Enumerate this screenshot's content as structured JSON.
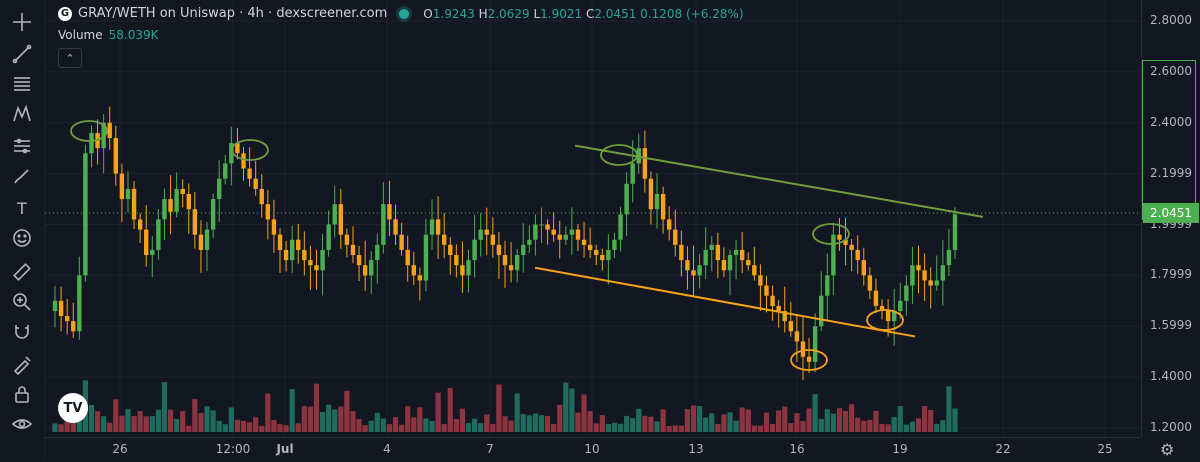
{
  "legend": {
    "logo_letter": "G",
    "pair_title": "GRAY/WETH on Uniswap · 4h · dexscreener.com",
    "o_label": "O",
    "o_value": "1.9243",
    "h_label": "H",
    "h_value": "2.0629",
    "l_label": "L",
    "l_value": "1.9021",
    "c_label": "C",
    "c_value": "2.0451",
    "change": "0.1208 (+6.28%)",
    "volume_label": "Volume",
    "volume_value": "58.039K",
    "collapse_glyph": "⌃"
  },
  "toolbar": {
    "items": [
      "crosshair-icon",
      "trend-line-icon",
      "fib-icon",
      "pattern-icon",
      "projection-icon",
      "brush-icon",
      "text-icon",
      "emoji-icon",
      "ruler-icon",
      "zoom-icon",
      "magnet-icon",
      "lock-drawings-icon",
      "lock-icon",
      "eye-icon"
    ],
    "text_tool_glyph": "T"
  },
  "colors": {
    "background": "#131722",
    "bull_candle": "#4caf50",
    "bear_candle": "#f7a21b",
    "bull_volume": "#1f6b5e",
    "bear_volume": "#8c3541",
    "trendline_upper": "#6fa03a",
    "trendline_lower": "#f7a21b",
    "last_price": "#4caf50"
  },
  "price_axis": {
    "labels": [
      "2.8000",
      "2.6000",
      "2.4000",
      "2.1999",
      "1.9999",
      "1.7999",
      "1.5999",
      "1.4000",
      "1.2000"
    ],
    "last_price": "2.0451"
  },
  "time_axis": {
    "labels": [
      "26",
      "12:00",
      "Jul",
      "4",
      "7",
      "10",
      "13",
      "16",
      "19",
      "22",
      "25"
    ]
  },
  "tv_logo_glyph": "TV",
  "settings_glyph": "⚙",
  "chart_data": {
    "type": "candlestick",
    "title": "GRAY/WETH on Uniswap · 4h · dexscreener.com",
    "interval": "4h",
    "ylim": [
      1.2,
      2.8
    ],
    "last": {
      "open": 1.9243,
      "high": 2.0629,
      "low": 1.9021,
      "close": 2.0451,
      "change": 0.1208,
      "change_pct": 6.28
    },
    "volume_last": "58.039K",
    "closes": [
      1.7,
      1.64,
      1.62,
      1.58,
      1.8,
      2.28,
      2.36,
      2.3,
      2.4,
      2.34,
      2.2,
      2.1,
      2.14,
      2.02,
      1.98,
      1.88,
      1.9,
      2.02,
      2.1,
      2.05,
      2.14,
      2.12,
      2.06,
      1.96,
      1.9,
      1.98,
      2.1,
      2.18,
      2.24,
      2.32,
      2.28,
      2.22,
      2.18,
      2.14,
      2.08,
      2.02,
      1.96,
      1.9,
      1.86,
      1.94,
      1.9,
      1.86,
      1.84,
      1.82,
      1.9,
      2.0,
      2.08,
      1.96,
      1.92,
      1.88,
      1.84,
      1.8,
      1.86,
      1.92,
      2.08,
      2.02,
      1.96,
      1.9,
      1.84,
      1.8,
      1.78,
      1.96,
      2.02,
      1.96,
      1.92,
      1.88,
      1.84,
      1.8,
      1.86,
      1.94,
      1.98,
      1.96,
      1.92,
      1.88,
      1.84,
      1.82,
      1.88,
      1.92,
      1.94,
      2.0,
      2.0,
      1.98,
      1.96,
      1.94,
      1.96,
      1.98,
      1.94,
      1.92,
      1.9,
      1.88,
      1.86,
      1.9,
      1.94,
      2.04,
      2.16,
      2.24,
      2.3,
      2.18,
      2.06,
      2.12,
      2.02,
      1.98,
      1.92,
      1.86,
      1.82,
      1.8,
      1.84,
      1.9,
      1.92,
      1.86,
      1.82,
      1.88,
      1.9,
      1.86,
      1.84,
      1.8,
      1.76,
      1.72,
      1.68,
      1.66,
      1.62,
      1.58,
      1.54,
      1.48,
      1.46,
      1.6,
      1.72,
      1.8,
      1.96,
      1.94,
      1.92,
      1.9,
      1.86,
      1.8,
      1.74,
      1.68,
      1.66,
      1.62,
      1.66,
      1.7,
      1.76,
      1.84,
      1.82,
      1.78,
      1.76,
      1.78,
      1.84,
      1.9,
      2.04
    ],
    "annotations": [
      {
        "type": "trendline",
        "color": "upper",
        "from": [
          2.3,
          "Jul 10"
        ],
        "to": [
          2.05,
          "Jul 21"
        ]
      },
      {
        "type": "trendline",
        "color": "lower",
        "from": [
          1.83,
          "Jul 8"
        ],
        "to": [
          1.56,
          "Jul 19"
        ]
      }
    ]
  }
}
